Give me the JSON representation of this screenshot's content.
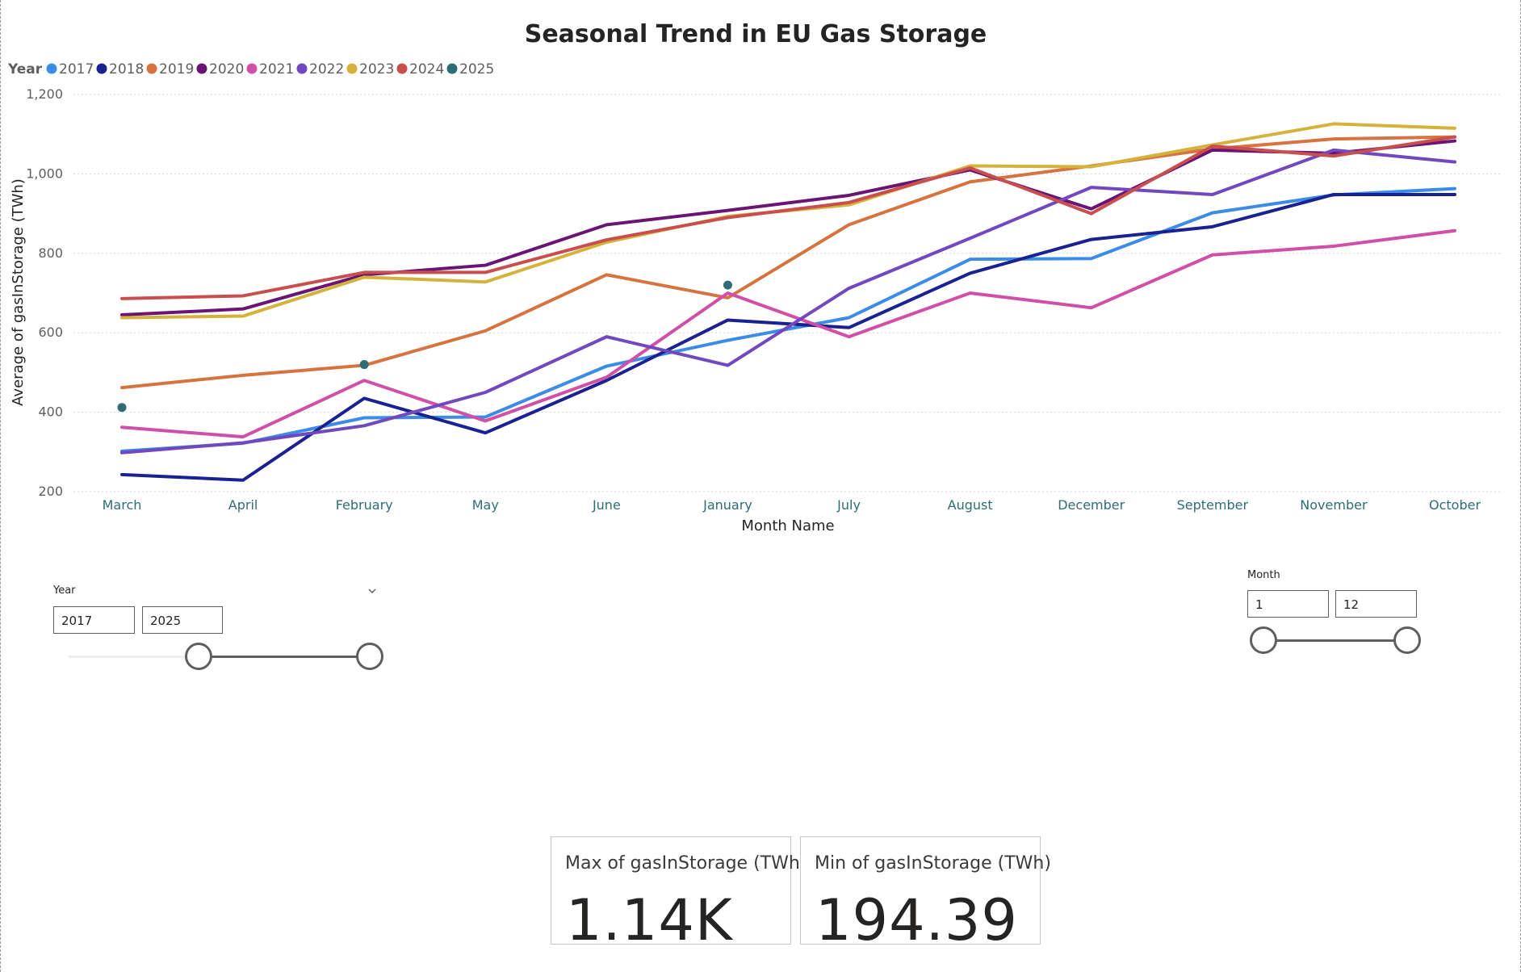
{
  "colors": {
    "2017": "#3c8ce7",
    "2018": "#1a2190",
    "2019": "#d6733f",
    "2020": "#6a1475",
    "2021": "#d04fa7",
    "2022": "#7148bd",
    "2023": "#d4b23b",
    "2024": "#c94f4f",
    "2025": "#2f6d74",
    "axis_tick": "#2f6d74",
    "text": "#252423"
  },
  "chart_data": {
    "type": "line",
    "title": "Seasonal Trend in EU Gas Storage",
    "xlabel": "Month Name",
    "ylabel": "Average of gasInStorage (TWh)",
    "legend_title": "Year",
    "legend_position": "top-left",
    "ylim": [
      200,
      1200
    ],
    "yticks": [
      200,
      400,
      600,
      800,
      1000,
      1200
    ],
    "ytick_labels": [
      "200",
      "400",
      "600",
      "800",
      "1,000",
      "1,200"
    ],
    "grid": true,
    "categories": [
      "March",
      "April",
      "February",
      "May",
      "June",
      "January",
      "July",
      "August",
      "December",
      "September",
      "November",
      "October"
    ],
    "series": [
      {
        "name": "2017",
        "values": [
          302,
          322,
          386,
          388,
          516,
          581,
          638,
          785,
          787,
          902,
          947,
          963
        ]
      },
      {
        "name": "2018",
        "values": [
          243,
          229,
          435,
          348,
          480,
          632,
          613,
          750,
          835,
          867,
          948,
          948
        ]
      },
      {
        "name": "2019",
        "values": [
          462,
          493,
          518,
          605,
          746,
          688,
          872,
          980,
          1020,
          1063,
          1088,
          1093
        ]
      },
      {
        "name": "2020",
        "values": [
          645,
          660,
          746,
          770,
          872,
          908,
          946,
          1010,
          912,
          1060,
          1052,
          1083
        ]
      },
      {
        "name": "2021",
        "values": [
          362,
          338,
          480,
          378,
          488,
          700,
          590,
          700,
          663,
          796,
          818,
          857
        ]
      },
      {
        "name": "2022",
        "values": [
          298,
          323,
          366,
          450,
          590,
          518,
          712,
          838,
          966,
          948,
          1060,
          1030
        ]
      },
      {
        "name": "2023",
        "values": [
          638,
          642,
          740,
          728,
          828,
          893,
          922,
          1020,
          1018,
          1073,
          1126,
          1115
        ]
      },
      {
        "name": "2024",
        "values": [
          686,
          693,
          752,
          752,
          834,
          890,
          928,
          1015,
          900,
          1070,
          1045,
          1093
        ]
      },
      {
        "name": "2025",
        "values": [
          412,
          null,
          520,
          null,
          null,
          720,
          null,
          null,
          null,
          null,
          null,
          null
        ]
      }
    ]
  },
  "year_slicer": {
    "label": "Year",
    "from": "2017",
    "to": "2025",
    "range_min": 2013,
    "range_max": 2025
  },
  "month_slicer": {
    "label": "Month",
    "from": "1",
    "to": "12",
    "range_min": 1,
    "range_max": 12
  },
  "cards": [
    {
      "label": "Max of gasInStorage (TWh)",
      "value": "1.14K"
    },
    {
      "label": "Min of gasInStorage (TWh)",
      "value": "194.39"
    }
  ]
}
